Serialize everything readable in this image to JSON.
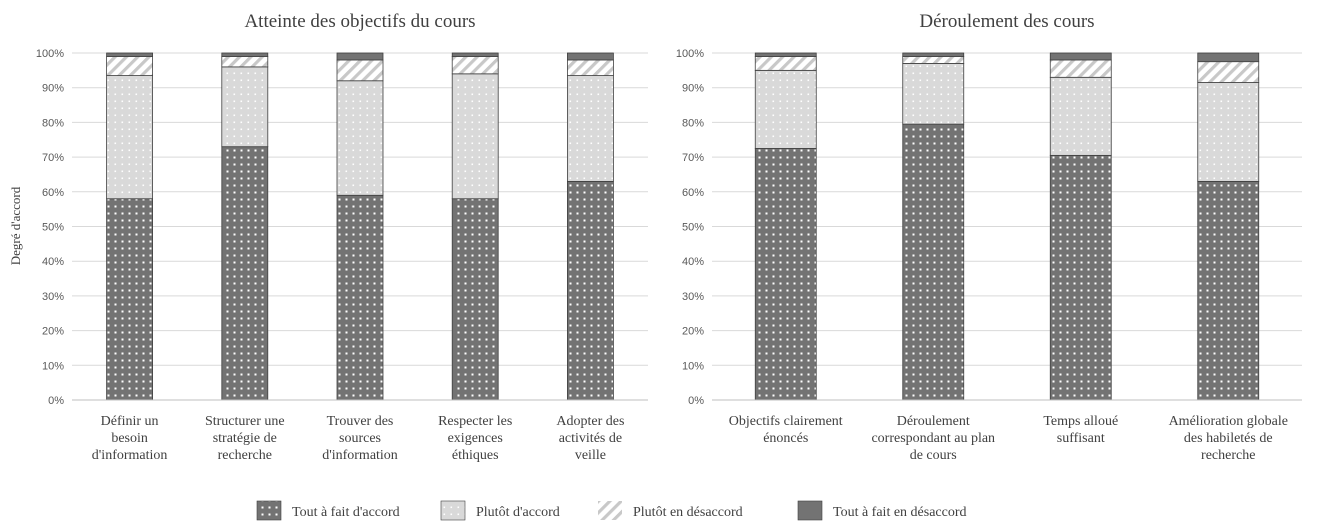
{
  "legend": [
    {
      "label": "Tout à fait d'accord",
      "pattern": "dots"
    },
    {
      "label": "Plutôt d'accord",
      "pattern": "lightdots"
    },
    {
      "label": "Plutôt en désaccord",
      "pattern": "stripes"
    },
    {
      "label": "Tout à fait en désaccord",
      "pattern": "solid"
    }
  ],
  "colors": {
    "dark_fill": "#737373",
    "light_fill": "#d9d9d9",
    "stripe": "#c8c8c8",
    "solid": "#737373",
    "grid": "#d9d9d9",
    "axis_text": "#595959"
  },
  "chart_data": [
    {
      "type": "bar",
      "stacked": true,
      "title": "Atteinte des objectifs du cours",
      "ylabel": "Degré d'accord",
      "xlabel": "",
      "ylim": [
        0,
        100
      ],
      "yticks": [
        "0%",
        "10%",
        "20%",
        "30%",
        "40%",
        "50%",
        "60%",
        "70%",
        "80%",
        "90%",
        "100%"
      ],
      "grid": true,
      "legend_position": "bottom",
      "categories": [
        [
          "Définir un",
          "besoin",
          "d'information"
        ],
        [
          "Structurer une",
          "stratégie de",
          "recherche"
        ],
        [
          "Trouver des",
          "sources",
          "d'information"
        ],
        [
          "Respecter les",
          "exigences",
          "éthiques"
        ],
        [
          "Adopter des",
          "activités de",
          "veille"
        ]
      ],
      "series": [
        {
          "name": "Tout à fait d'accord",
          "values": [
            58,
            73,
            59,
            58,
            63
          ]
        },
        {
          "name": "Plutôt d'accord",
          "values": [
            35.5,
            23,
            33,
            36,
            30.5
          ]
        },
        {
          "name": "Plutôt en désaccord",
          "values": [
            5.5,
            3,
            6,
            5,
            4.5
          ]
        },
        {
          "name": "Tout à fait en désaccord",
          "values": [
            1,
            1,
            2,
            1,
            2
          ]
        }
      ]
    },
    {
      "type": "bar",
      "stacked": true,
      "title": "Déroulement des cours",
      "ylabel": "",
      "xlabel": "",
      "ylim": [
        0,
        100
      ],
      "yticks": [
        "0%",
        "10%",
        "20%",
        "30%",
        "40%",
        "50%",
        "60%",
        "70%",
        "80%",
        "90%",
        "100%"
      ],
      "grid": true,
      "legend_position": "bottom",
      "categories": [
        [
          "Objectifs clairement",
          "énoncés"
        ],
        [
          "Déroulement",
          "correspondant au plan",
          "de cours"
        ],
        [
          "Temps alloué",
          "suffisant"
        ],
        [
          "Amélioration globale",
          "des habiletés de",
          "recherche"
        ]
      ],
      "series": [
        {
          "name": "Tout à fait d'accord",
          "values": [
            72.5,
            79.5,
            70.5,
            63
          ]
        },
        {
          "name": "Plutôt d'accord",
          "values": [
            22.5,
            17.5,
            22.5,
            28.5
          ]
        },
        {
          "name": "Plutôt en désaccord",
          "values": [
            4,
            2,
            5,
            6
          ]
        },
        {
          "name": "Tout à fait en désaccord",
          "values": [
            1,
            1,
            2,
            2.5
          ]
        }
      ]
    }
  ]
}
